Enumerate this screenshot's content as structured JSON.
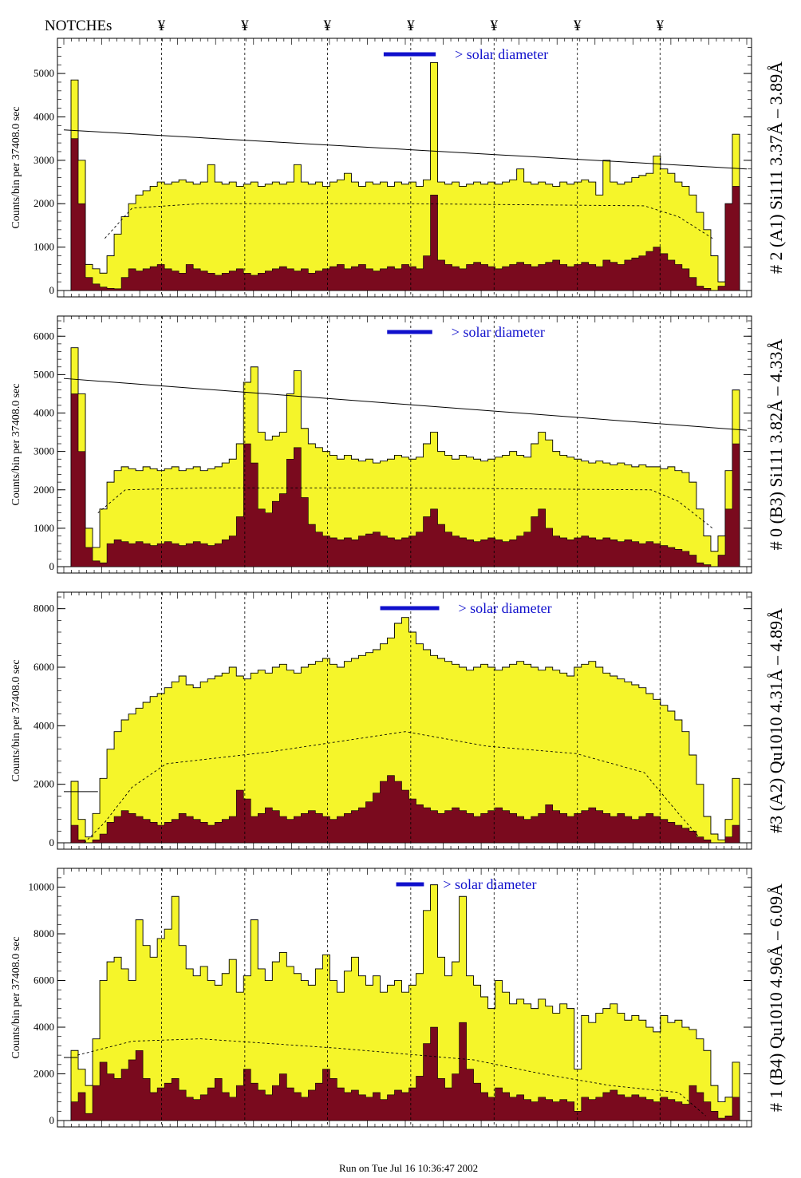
{
  "header": {
    "notches_label": "NOTCHEs",
    "notch_symbol": "¥",
    "notch_x_fractions": [
      0.143,
      0.265,
      0.386,
      0.508,
      0.63,
      0.752,
      0.873
    ]
  },
  "footer": {
    "run_text": "Run on Tue Jul 16 10:36:47 2002"
  },
  "colors": {
    "yellow_fill": "#f5f52a",
    "dark_fill": "#7a0a1e",
    "solar_bar": "#1010cc",
    "line": "#000000"
  },
  "chart_data": [
    {
      "type": "area",
      "detector": "# 2 (A1) Si111  3.37Å – 3.89Å",
      "ylabel": "Counts/bin per  37408.0 sec",
      "ylim": [
        0,
        5700
      ],
      "yticks": [
        0,
        1000,
        2000,
        3000,
        4000,
        5000
      ],
      "solar_label": "> solar diameter",
      "solar_bar": [
        0.47,
        0.545
      ],
      "series": [
        {
          "values": [
            0,
            4850,
            3000,
            600,
            500,
            400,
            800,
            1300,
            1700,
            2000,
            2200,
            2300,
            2400,
            2500,
            2450,
            2500,
            2550,
            2500,
            2450,
            2500,
            2900,
            2500,
            2450,
            2500,
            2400,
            2450,
            2500,
            2400,
            2450,
            2500,
            2450,
            2500,
            2900,
            2500,
            2450,
            2500,
            2400,
            2500,
            2550,
            2700,
            2500,
            2400,
            2500,
            2450,
            2500,
            2400,
            2500,
            2450,
            2500,
            2400,
            2550,
            5250,
            2500,
            2450,
            2500,
            2400,
            2450,
            2500,
            2450,
            2500,
            2450,
            2500,
            2550,
            2800,
            2500,
            2450,
            2500,
            2450,
            2400,
            2500,
            2450,
            2500,
            2550,
            2500,
            2200,
            3000,
            2500,
            2450,
            2500,
            2600,
            2650,
            2700,
            3100,
            2800,
            2700,
            2500,
            2400,
            2200,
            1800,
            1400,
            800,
            200,
            2000,
            3600,
            0
          ]
        },
        {
          "values": [
            0,
            3500,
            2000,
            300,
            150,
            80,
            50,
            40,
            300,
            500,
            450,
            500,
            550,
            600,
            500,
            450,
            400,
            600,
            500,
            450,
            400,
            350,
            400,
            450,
            500,
            400,
            350,
            400,
            450,
            500,
            550,
            500,
            450,
            500,
            400,
            450,
            500,
            550,
            600,
            500,
            550,
            600,
            500,
            450,
            500,
            550,
            500,
            600,
            550,
            500,
            800,
            2200,
            700,
            600,
            550,
            500,
            600,
            650,
            600,
            550,
            500,
            550,
            600,
            650,
            600,
            550,
            600,
            650,
            700,
            600,
            550,
            600,
            650,
            600,
            550,
            700,
            650,
            600,
            700,
            750,
            800,
            900,
            1000,
            850,
            700,
            600,
            500,
            300,
            100,
            50,
            0,
            100,
            2000,
            2400,
            0
          ]
        }
      ],
      "dashed_curve": [
        [
          0.06,
          1200
        ],
        [
          0.1,
          1900
        ],
        [
          0.2,
          2000
        ],
        [
          0.5,
          2000
        ],
        [
          0.85,
          1950
        ],
        [
          0.9,
          1700
        ],
        [
          0.95,
          1200
        ]
      ],
      "trend_line": [
        [
          0.0,
          3700
        ],
        [
          1.0,
          2800
        ]
      ]
    },
    {
      "type": "area",
      "detector": "# 0 (B3) Si111  3.82Å – 4.33Å",
      "ylabel": "Counts/bin per  37408.0 sec",
      "ylim": [
        0,
        6400
      ],
      "yticks": [
        0,
        1000,
        2000,
        3000,
        4000,
        5000,
        6000
      ],
      "solar_label": "> solar diameter",
      "solar_bar": [
        0.475,
        0.54
      ],
      "series": [
        {
          "values": [
            0,
            5700,
            4500,
            1000,
            500,
            1500,
            2200,
            2500,
            2600,
            2550,
            2500,
            2600,
            2550,
            2500,
            2550,
            2600,
            2500,
            2550,
            2600,
            2500,
            2550,
            2600,
            2700,
            2800,
            3200,
            4800,
            5200,
            3500,
            3300,
            3400,
            3500,
            4500,
            5100,
            3600,
            3200,
            3100,
            3000,
            2900,
            2800,
            2900,
            2800,
            2750,
            2800,
            2700,
            2750,
            2800,
            2900,
            2850,
            2800,
            2850,
            3200,
            3500,
            3000,
            2900,
            2800,
            2900,
            2850,
            2800,
            2750,
            2800,
            2850,
            2900,
            3000,
            2900,
            2850,
            3200,
            3500,
            3300,
            3000,
            2900,
            2850,
            2800,
            2750,
            2700,
            2750,
            2700,
            2650,
            2700,
            2650,
            2600,
            2650,
            2600,
            2600,
            2550,
            2600,
            2500,
            2450,
            2200,
            1500,
            800,
            400,
            800,
            2500,
            4600,
            0
          ]
        },
        {
          "values": [
            0,
            4500,
            3000,
            500,
            150,
            100,
            600,
            700,
            650,
            600,
            650,
            600,
            550,
            600,
            650,
            600,
            550,
            600,
            650,
            600,
            550,
            600,
            700,
            800,
            1300,
            3200,
            2700,
            1500,
            1400,
            1700,
            1900,
            2800,
            3100,
            1800,
            1100,
            900,
            800,
            750,
            700,
            750,
            700,
            800,
            850,
            900,
            800,
            750,
            700,
            750,
            800,
            900,
            1300,
            1500,
            1100,
            900,
            800,
            750,
            700,
            650,
            700,
            750,
            700,
            650,
            700,
            800,
            900,
            1300,
            1500,
            1000,
            800,
            750,
            700,
            750,
            800,
            750,
            700,
            750,
            700,
            650,
            700,
            650,
            600,
            650,
            600,
            550,
            500,
            450,
            400,
            300,
            100,
            50,
            0,
            300,
            1500,
            3200,
            0
          ]
        }
      ],
      "dashed_curve": [
        [
          0.05,
          1400
        ],
        [
          0.09,
          2000
        ],
        [
          0.2,
          2050
        ],
        [
          0.5,
          2050
        ],
        [
          0.86,
          2000
        ],
        [
          0.9,
          1700
        ],
        [
          0.95,
          1000
        ]
      ],
      "trend_line": [
        [
          0.0,
          4900
        ],
        [
          1.0,
          3550
        ]
      ]
    },
    {
      "type": "area",
      "detector": "#3 (A2) Qu1010  4.31Å – 4.89Å",
      "ylabel": "Counts/bin per  37408.0 sec",
      "ylim": [
        0,
        8400
      ],
      "yticks": [
        0,
        2000,
        4000,
        6000,
        8000
      ],
      "solar_label": "> solar diameter",
      "solar_bar": [
        0.465,
        0.55
      ],
      "series": [
        {
          "values": [
            0,
            2100,
            800,
            200,
            1000,
            2200,
            3200,
            3800,
            4200,
            4400,
            4600,
            4800,
            5000,
            5100,
            5300,
            5500,
            5700,
            5400,
            5300,
            5500,
            5600,
            5700,
            5800,
            6000,
            5700,
            5600,
            5800,
            5900,
            5800,
            6000,
            6100,
            5900,
            5800,
            6000,
            6100,
            6200,
            6300,
            6100,
            6000,
            6200,
            6300,
            6400,
            6500,
            6600,
            6800,
            7000,
            7500,
            7700,
            7200,
            6800,
            6600,
            6400,
            6300,
            6200,
            6100,
            6000,
            5900,
            6000,
            6100,
            6000,
            5900,
            6000,
            6100,
            6200,
            6100,
            6000,
            5900,
            6000,
            5900,
            5800,
            5700,
            6000,
            6100,
            6200,
            6000,
            5800,
            5700,
            5600,
            5500,
            5400,
            5300,
            5100,
            4900,
            4700,
            4500,
            4200,
            3800,
            3000,
            2000,
            900,
            300,
            100,
            800,
            2200,
            0
          ]
        },
        {
          "values": [
            0,
            600,
            100,
            0,
            100,
            300,
            700,
            900,
            1100,
            1000,
            900,
            800,
            700,
            600,
            700,
            800,
            1000,
            900,
            800,
            700,
            600,
            700,
            800,
            900,
            1800,
            1500,
            900,
            1000,
            1200,
            1100,
            900,
            800,
            900,
            1000,
            1100,
            1000,
            900,
            800,
            900,
            1000,
            1100,
            1200,
            1400,
            1700,
            2100,
            2300,
            2100,
            1800,
            1500,
            1300,
            1200,
            1100,
            1000,
            1100,
            1200,
            1100,
            1000,
            900,
            1000,
            1100,
            1200,
            1100,
            1000,
            900,
            800,
            900,
            1000,
            1300,
            1100,
            1000,
            900,
            1000,
            1100,
            1200,
            1100,
            1000,
            900,
            1000,
            900,
            800,
            900,
            1000,
            900,
            800,
            700,
            600,
            500,
            400,
            200,
            100,
            0,
            0,
            200,
            600,
            0
          ]
        }
      ],
      "dashed_curve": [
        [
          0.03,
          0
        ],
        [
          0.06,
          700
        ],
        [
          0.1,
          1900
        ],
        [
          0.15,
          2700
        ],
        [
          0.3,
          3100
        ],
        [
          0.5,
          3800
        ],
        [
          0.62,
          3300
        ],
        [
          0.75,
          3050
        ],
        [
          0.85,
          2400
        ],
        [
          0.9,
          1000
        ],
        [
          0.93,
          200
        ]
      ],
      "trend_line": [
        [
          0.0,
          1750
        ],
        [
          0.05,
          1750
        ]
      ]
    },
    {
      "type": "area",
      "detector": "# 1 (B4) Qu1010 4.96Å – 6.09Å",
      "ylabel": "Counts/bin per  37408.0 sec",
      "ylim": [
        0,
        10600
      ],
      "yticks": [
        0,
        2000,
        4000,
        6000,
        8000,
        10000
      ],
      "solar_label": "> solar diameter",
      "solar_bar": [
        0.488,
        0.528
      ],
      "series": [
        {
          "values": [
            0,
            3000,
            2200,
            1500,
            3500,
            6000,
            6800,
            7000,
            6500,
            6000,
            8600,
            7500,
            7000,
            7800,
            8200,
            9600,
            7500,
            6500,
            6200,
            6600,
            6000,
            5800,
            6300,
            6900,
            5500,
            6200,
            8600,
            6500,
            6000,
            6800,
            7200,
            6600,
            6300,
            6000,
            5800,
            6500,
            7100,
            6000,
            5500,
            6400,
            7000,
            6200,
            5800,
            6200,
            5500,
            5800,
            6000,
            5500,
            5800,
            6300,
            9000,
            10100,
            7000,
            6200,
            6800,
            9600,
            6200,
            5800,
            5300,
            4800,
            6000,
            5500,
            5000,
            5200,
            5000,
            4800,
            5200,
            4900,
            4600,
            5000,
            4800,
            2200,
            4500,
            4200,
            4600,
            4800,
            5000,
            4600,
            4300,
            4500,
            4300,
            4000,
            3800,
            4500,
            4200,
            4300,
            4000,
            3900,
            3500,
            3000,
            1500,
            800,
            1000,
            2500,
            0
          ]
        },
        {
          "values": [
            0,
            800,
            1200,
            300,
            1500,
            2500,
            2000,
            1800,
            2200,
            2600,
            3000,
            1800,
            1200,
            1400,
            1600,
            1800,
            1300,
            1000,
            900,
            1100,
            1400,
            1800,
            1200,
            1000,
            1500,
            2200,
            1600,
            1300,
            1100,
            1500,
            2000,
            1400,
            1200,
            1000,
            1300,
            1600,
            2200,
            1800,
            1400,
            1200,
            1300,
            1100,
            1000,
            1200,
            900,
            1100,
            1300,
            1200,
            1400,
            1900,
            3300,
            4000,
            1800,
            1400,
            2000,
            4200,
            2200,
            1600,
            1200,
            1000,
            1400,
            1200,
            1000,
            1100,
            900,
            800,
            1000,
            900,
            800,
            900,
            800,
            400,
            1000,
            900,
            1000,
            1200,
            1300,
            1100,
            1000,
            1100,
            1000,
            900,
            800,
            1000,
            900,
            800,
            700,
            1500,
            1200,
            800,
            400,
            100,
            200,
            1000,
            0
          ]
        }
      ],
      "dashed_curve": [
        [
          0.02,
          2800
        ],
        [
          0.1,
          3400
        ],
        [
          0.2,
          3500
        ],
        [
          0.4,
          3100
        ],
        [
          0.6,
          2600
        ],
        [
          0.7,
          2000
        ],
        [
          0.8,
          1500
        ],
        [
          0.9,
          1200
        ],
        [
          0.94,
          200
        ]
      ],
      "trend_line": [
        [
          0.0,
          2700
        ],
        [
          0.02,
          2700
        ]
      ]
    }
  ]
}
